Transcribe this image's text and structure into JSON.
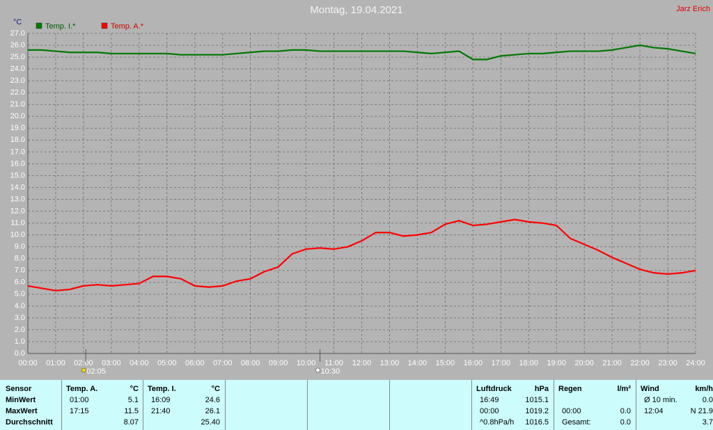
{
  "chart_data": {
    "type": "line",
    "title": "Montag, 19.04.2021",
    "author": "Jarz Erich",
    "y_unit": "°C",
    "x": [
      0,
      0.5,
      1,
      1.5,
      2,
      2.5,
      3,
      3.5,
      4,
      4.5,
      5,
      5.5,
      6,
      6.5,
      7,
      7.5,
      8,
      8.5,
      9,
      9.5,
      10,
      10.5,
      11,
      11.5,
      12,
      12.5,
      13,
      13.5,
      14,
      14.5,
      15,
      15.5,
      16,
      16.5,
      17,
      17.5,
      18,
      18.5,
      19,
      19.5,
      20,
      20.5,
      21,
      21.5,
      22,
      22.5,
      23,
      23.5,
      24
    ],
    "series": [
      {
        "name": "Temp. I.*",
        "color": "#007800",
        "values": [
          25.6,
          25.6,
          25.5,
          25.4,
          25.4,
          25.4,
          25.3,
          25.3,
          25.3,
          25.3,
          25.3,
          25.2,
          25.2,
          25.2,
          25.2,
          25.3,
          25.4,
          25.5,
          25.5,
          25.6,
          25.6,
          25.5,
          25.5,
          25.5,
          25.5,
          25.5,
          25.5,
          25.5,
          25.4,
          25.3,
          25.4,
          25.5,
          24.8,
          24.8,
          25.1,
          25.2,
          25.3,
          25.3,
          25.4,
          25.5,
          25.5,
          25.5,
          25.6,
          25.8,
          26.0,
          25.8,
          25.7,
          25.5,
          25.3
        ]
      },
      {
        "name": "Temp. A.*",
        "color": "#ff0000",
        "values": [
          5.7,
          5.5,
          5.3,
          5.4,
          5.7,
          5.8,
          5.7,
          5.8,
          5.9,
          6.5,
          6.5,
          6.3,
          5.7,
          5.6,
          5.7,
          6.1,
          6.3,
          6.9,
          7.3,
          8.4,
          8.8,
          8.9,
          8.8,
          9.0,
          9.5,
          10.2,
          10.2,
          9.9,
          10.0,
          10.2,
          10.9,
          11.2,
          10.8,
          10.9,
          11.1,
          11.3,
          11.1,
          11.0,
          10.8,
          9.7,
          9.2,
          8.7,
          8.1,
          7.6,
          7.1,
          6.8,
          6.7,
          6.8,
          7.0
        ]
      }
    ],
    "xlim": [
      0,
      24
    ],
    "xticks": [
      {
        "value": 0,
        "label": "00:00"
      },
      {
        "value": 1,
        "label": "01:00"
      },
      {
        "value": 2,
        "label": "02:00"
      },
      {
        "value": 3,
        "label": "03:00"
      },
      {
        "value": 4,
        "label": "04:00"
      },
      {
        "value": 5,
        "label": "05:00"
      },
      {
        "value": 6,
        "label": "06:00"
      },
      {
        "value": 7,
        "label": "07:00"
      },
      {
        "value": 8,
        "label": "08:00"
      },
      {
        "value": 9,
        "label": "09:00"
      },
      {
        "value": 10,
        "label": "10:00"
      },
      {
        "value": 11,
        "label": "11:00"
      },
      {
        "value": 12,
        "label": "12:00"
      },
      {
        "value": 13,
        "label": "13:00"
      },
      {
        "value": 14,
        "label": "14:00"
      },
      {
        "value": 15,
        "label": "15:00"
      },
      {
        "value": 16,
        "label": "16:00"
      },
      {
        "value": 17,
        "label": "17:00"
      },
      {
        "value": 18,
        "label": "18:00"
      },
      {
        "value": 19,
        "label": "19:00"
      },
      {
        "value": 20,
        "label": "20:00"
      },
      {
        "value": 21,
        "label": "21:00"
      },
      {
        "value": 22,
        "label": "22:00"
      },
      {
        "value": 23,
        "label": "23:00"
      },
      {
        "value": 24,
        "label": "24:00"
      }
    ],
    "ylim": [
      0,
      27
    ],
    "yticks": [
      {
        "value": 0,
        "label": "0.0"
      },
      {
        "value": 1,
        "label": "1.0"
      },
      {
        "value": 2,
        "label": "2.0"
      },
      {
        "value": 3,
        "label": "3.0"
      },
      {
        "value": 4,
        "label": "4.0"
      },
      {
        "value": 5,
        "label": "5.0"
      },
      {
        "value": 6,
        "label": "6.0"
      },
      {
        "value": 7,
        "label": "7.0"
      },
      {
        "value": 8,
        "label": "8.0"
      },
      {
        "value": 9,
        "label": "9.0"
      },
      {
        "value": 10,
        "label": "10.0"
      },
      {
        "value": 11,
        "label": "11.0"
      },
      {
        "value": 12,
        "label": "12.0"
      },
      {
        "value": 13,
        "label": "13.0"
      },
      {
        "value": 14,
        "label": "14.0"
      },
      {
        "value": 15,
        "label": "15.0"
      },
      {
        "value": 16,
        "label": "16.0"
      },
      {
        "value": 17,
        "label": "17.0"
      },
      {
        "value": 18,
        "label": "18.0"
      },
      {
        "value": 19,
        "label": "19.0"
      },
      {
        "value": 20,
        "label": "20.0"
      },
      {
        "value": 21,
        "label": "21.0"
      },
      {
        "value": 22,
        "label": "22.0"
      },
      {
        "value": 23,
        "label": "23.0"
      },
      {
        "value": 24,
        "label": "24.0"
      },
      {
        "value": 25,
        "label": "25.0"
      },
      {
        "value": 26,
        "label": "26.0"
      },
      {
        "value": 27,
        "label": "27.0"
      }
    ],
    "grid": true,
    "annotations": [
      {
        "time": 2.0833,
        "label": "02:05"
      },
      {
        "time": 10.5,
        "label": "10:30"
      }
    ]
  },
  "table": {
    "sensor": {
      "header": "Sensor",
      "rows": [
        "MinWert",
        "MaxWert",
        "Durchschnitt"
      ]
    },
    "panels": [
      {
        "name": "Temp. A.",
        "unit": "°C",
        "rows": [
          {
            "time": "01:00",
            "value": "5.1"
          },
          {
            "time": "17:15",
            "value": "11.5"
          },
          {
            "value": "8.07"
          }
        ]
      },
      {
        "name": "Temp. I.",
        "unit": "°C",
        "rows": [
          {
            "time": "16:09",
            "value": "24.6"
          },
          {
            "time": "21:40",
            "value": "26.1"
          },
          {
            "value": "25.40"
          }
        ]
      },
      {
        "name": "Luftdruck",
        "unit": "hPa",
        "rows": [
          {
            "time": "16:49",
            "value": "1015.1"
          },
          {
            "time": "00:00",
            "value": "1019.2"
          },
          {
            "time": "^0.8hPa/h",
            "value": "1016.5"
          }
        ]
      },
      {
        "name": "Regen",
        "unit": "l/m²",
        "rows": [
          {},
          {
            "time": "00:00",
            "value": "0.0"
          },
          {
            "time": "Gesamt:",
            "value": "0.0"
          }
        ]
      },
      {
        "name": "Wind",
        "unit": "km/h",
        "rows": [
          {
            "time": "Ø 10 min.",
            "value": "0.0"
          },
          {
            "time": "12:04",
            "value": "N 21.9"
          },
          {
            "value": "3.7"
          }
        ]
      }
    ]
  }
}
